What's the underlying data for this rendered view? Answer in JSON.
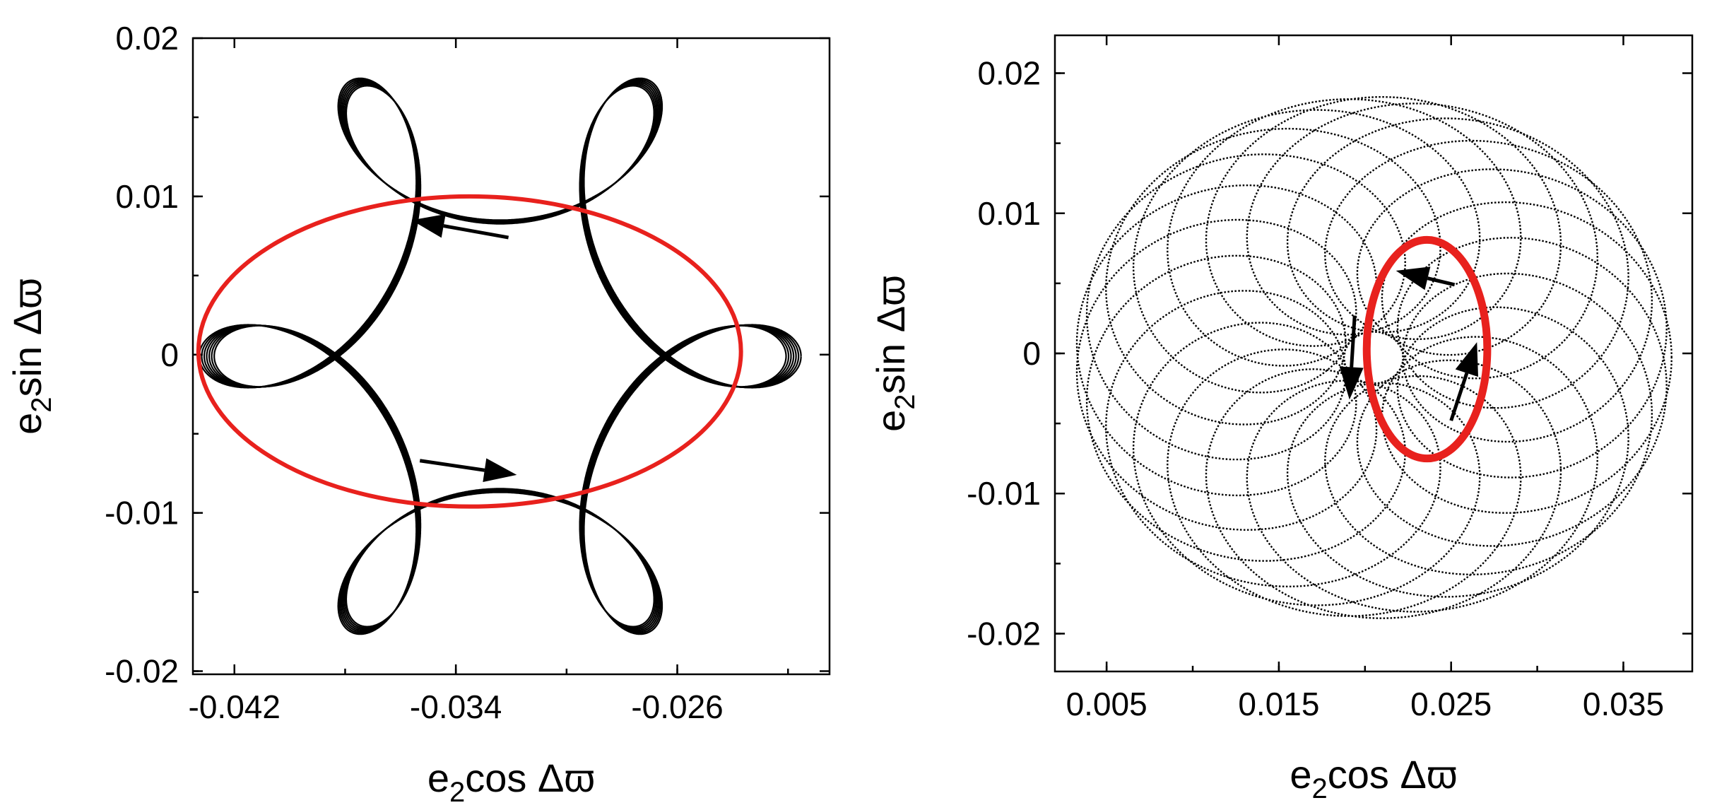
{
  "chart_data": [
    {
      "type": "line",
      "panel": "left",
      "xlim": [
        -0.0435,
        -0.0205
      ],
      "ylim": [
        -0.0202,
        0.02
      ],
      "xticks": [
        -0.042,
        -0.034,
        -0.026
      ],
      "xtick_labels": [
        "-0.042",
        "-0.034",
        "-0.026"
      ],
      "yticks": [
        -0.02,
        -0.01,
        0,
        0.01,
        0.02
      ],
      "ytick_labels": [
        "-0.02",
        "-0.01",
        "0",
        "0.01",
        "0.02"
      ],
      "xlabel": {
        "base": "e",
        "sub": "2",
        "rest": "cos Δϖ"
      },
      "ylabel": {
        "base": "e",
        "sub": "2",
        "rest": "sin Δϖ"
      },
      "grid": false,
      "trajectory": {
        "color": "#000000",
        "center": [
          -0.0324,
          -0.0001
        ],
        "radius_x": 0.0106,
        "radius_y": 0.0198,
        "modulation": 0.4,
        "lobes": 5
      },
      "ellipse": {
        "color": "#e8211d",
        "center": [
          -0.0335,
          0.0002
        ],
        "radius_x": 0.0098,
        "radius_y": 0.0098
      },
      "arrows": [
        {
          "from": [
            -0.0321,
            0.0074
          ],
          "to": [
            -0.0356,
            0.0085
          ]
        },
        {
          "from": [
            -0.0353,
            -0.0067
          ],
          "to": [
            -0.0318,
            -0.0076
          ]
        }
      ]
    },
    {
      "type": "scatter",
      "panel": "right",
      "xlim": [
        0.002,
        0.039
      ],
      "ylim": [
        -0.0227,
        0.0227
      ],
      "xticks": [
        0.005,
        0.015,
        0.025,
        0.035
      ],
      "xtick_labels": [
        "0.005",
        "0.015",
        "0.025",
        "0.035"
      ],
      "yticks": [
        -0.02,
        -0.01,
        0,
        0.01,
        0.02
      ],
      "ytick_labels": [
        "-0.02",
        "-0.01",
        "0",
        "0.01",
        "0.02"
      ],
      "xlabel": {
        "base": "e",
        "sub": "2",
        "rest": "cos Δϖ"
      },
      "ylabel": {
        "base": "e",
        "sub": "2",
        "rest": "sin Δϖ"
      },
      "grid": false,
      "trajectory": {
        "color": "#000000",
        "center": [
          0.0205,
          -0.0003
        ],
        "outer_radius": 0.0095,
        "inner_radius": 0.0078,
        "ratio": 6.25,
        "y_scale": 1.38
      },
      "ellipse": {
        "color": "#e8211d",
        "center": [
          0.0236,
          0.0003
        ],
        "radius_x": 0.0035,
        "radius_y": 0.0078
      },
      "arrows": [
        {
          "from": [
            0.0252,
            0.0049
          ],
          "to": [
            0.0218,
            0.0059
          ]
        },
        {
          "from": [
            0.0194,
            0.0027
          ],
          "to": [
            0.0191,
            -0.0033
          ]
        },
        {
          "from": [
            0.025,
            -0.0048
          ],
          "to": [
            0.0265,
            0.0008
          ]
        }
      ]
    }
  ]
}
